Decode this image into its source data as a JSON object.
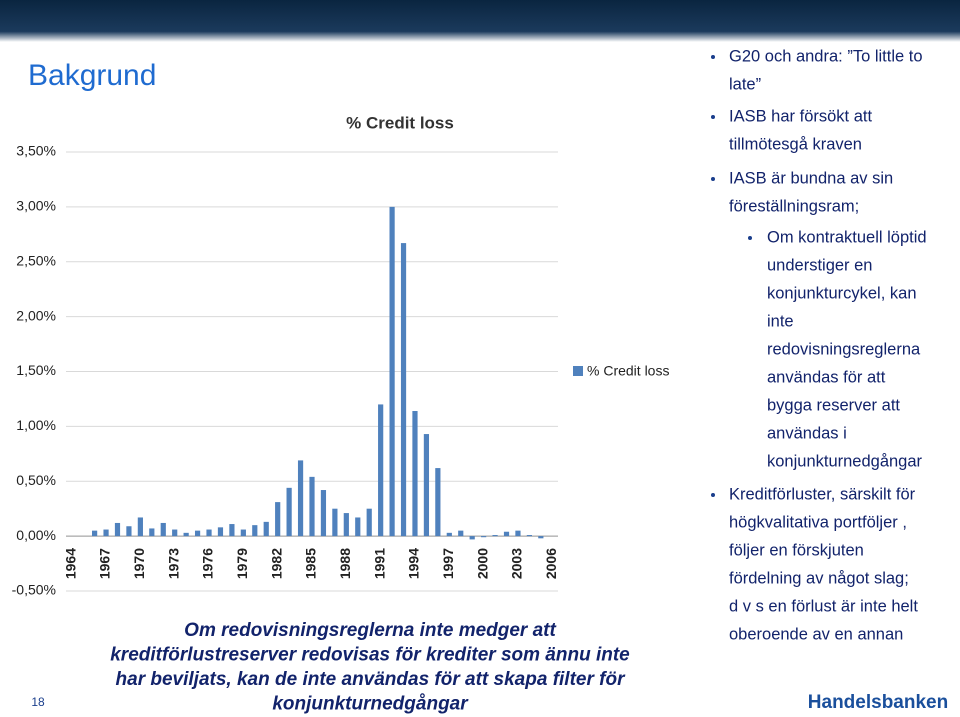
{
  "slide": {
    "title": "Bakgrund",
    "page_number": "18",
    "logo": "Handelsbanken",
    "caption": [
      "Om redovisningsreglerna inte medger att",
      "kreditförlustreserver redovisas för krediter som ännu inte",
      "har beviljats, kan de inte användas för att skapa filter för",
      "konjunkturnedgångar"
    ],
    "bullets": [
      {
        "level": 1,
        "lines": [
          "G20 och andra: ”To little to",
          "late”"
        ]
      },
      {
        "level": 1,
        "lines": [
          "IASB har försökt att",
          "tillmötesgå kraven"
        ]
      },
      {
        "level": 1,
        "lines": [
          "IASB är bundna av sin",
          "föreställningsram;"
        ]
      },
      {
        "level": 2,
        "lines": [
          "Om kontraktuell löptid",
          "understiger en",
          "konjunkturcykel, kan",
          "inte",
          "redovisningsreglerna",
          "användas för att",
          "bygga reserver att",
          "användas i",
          "konjunkturnedgångar"
        ]
      },
      {
        "level": 1,
        "lines": [
          "Kreditförluster, särskilt för",
          "högkvalitativa portföljer ,",
          "följer en förskjuten",
          "fördelning av något slag;",
          "d v s en förlust är inte helt",
          "oberoende av en annan"
        ]
      }
    ]
  },
  "chart_data": {
    "type": "bar",
    "title": "% Credit loss",
    "categories": [
      "1964",
      null,
      null,
      "1967",
      null,
      null,
      "1970",
      null,
      null,
      "1973",
      null,
      null,
      "1976",
      null,
      null,
      "1979",
      null,
      null,
      "1982",
      null,
      null,
      "1985",
      null,
      null,
      "1988",
      null,
      null,
      "1991",
      null,
      null,
      "1994",
      null,
      null,
      "1997",
      null,
      null,
      "2000",
      null,
      null,
      "2003",
      null,
      null,
      "2006"
    ],
    "series": [
      {
        "name": "% Credit loss",
        "color": "#4f81bd",
        "values": [
          null,
          null,
          0.05,
          0.06,
          0.12,
          0.09,
          0.17,
          0.07,
          0.12,
          0.06,
          0.03,
          0.05,
          0.06,
          0.08,
          0.11,
          0.06,
          0.1,
          0.13,
          0.31,
          0.44,
          0.69,
          0.54,
          0.42,
          0.25,
          0.21,
          0.17,
          0.25,
          1.2,
          3.0,
          2.67,
          1.14,
          0.93,
          0.62,
          0.03,
          0.05,
          -0.03,
          -0.01,
          0.01,
          0.04,
          0.05,
          0.01,
          -0.02,
          null
        ]
      }
    ],
    "ylim": [
      -0.5,
      3.5
    ],
    "yticks": [
      {
        "value": -0.5,
        "label": "-0,50%"
      },
      {
        "value": 0,
        "label": "0,00%"
      },
      {
        "value": 0.5,
        "label": "0,50%"
      },
      {
        "value": 1,
        "label": "1,00%"
      },
      {
        "value": 1.5,
        "label": "1,50%"
      },
      {
        "value": 2,
        "label": "2,00%"
      },
      {
        "value": 2.5,
        "label": "2,50%"
      },
      {
        "value": 3,
        "label": "3,00%"
      },
      {
        "value": 3.5,
        "label": "3,50%"
      }
    ],
    "grid": true,
    "legend": "right"
  }
}
